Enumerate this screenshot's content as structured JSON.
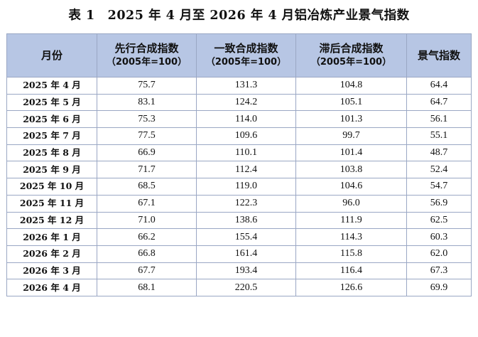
{
  "title": "表 1　2025 年 4 月至 2026 年 4 月铝冶炼产业景气指数",
  "headers": {
    "month": "月份",
    "leading": "先行合成指数",
    "leading_sub": "（2005年=100）",
    "coincident": "一致合成指数",
    "coincident_sub": "（2005年=100）",
    "lagging": "滞后合成指数",
    "lagging_sub": "（2005年=100）",
    "prosperity": "景气指数"
  },
  "rows": [
    {
      "month": "2025 年 4 月",
      "leading": "75.7",
      "coincident": "131.3",
      "lagging": "104.8",
      "prosperity": "64.4"
    },
    {
      "month": "2025 年 5 月",
      "leading": "83.1",
      "coincident": "124.2",
      "lagging": "105.1",
      "prosperity": "64.7"
    },
    {
      "month": "2025 年 6 月",
      "leading": "75.3",
      "coincident": "114.0",
      "lagging": "101.3",
      "prosperity": "56.1"
    },
    {
      "month": "2025 年 7 月",
      "leading": "77.5",
      "coincident": "109.6",
      "lagging": "99.7",
      "prosperity": "55.1"
    },
    {
      "month": "2025 年 8 月",
      "leading": "66.9",
      "coincident": "110.1",
      "lagging": "101.4",
      "prosperity": "48.7"
    },
    {
      "month": "2025 年 9 月",
      "leading": "71.7",
      "coincident": "112.4",
      "lagging": "103.8",
      "prosperity": "52.4"
    },
    {
      "month": "2025 年 10 月",
      "leading": "68.5",
      "coincident": "119.0",
      "lagging": "104.6",
      "prosperity": "54.7"
    },
    {
      "month": "2025 年 11 月",
      "leading": "67.1",
      "coincident": "122.3",
      "lagging": "96.0",
      "prosperity": "56.9"
    },
    {
      "month": "2025 年 12 月",
      "leading": "71.0",
      "coincident": "138.6",
      "lagging": "111.9",
      "prosperity": "62.5"
    },
    {
      "month": "2026 年 1 月",
      "leading": "66.2",
      "coincident": "155.4",
      "lagging": "114.3",
      "prosperity": "60.3"
    },
    {
      "month": "2026 年 2 月",
      "leading": "66.8",
      "coincident": "161.4",
      "lagging": "115.8",
      "prosperity": "62.0"
    },
    {
      "month": "2026 年 3 月",
      "leading": "67.7",
      "coincident": "193.4",
      "lagging": "116.4",
      "prosperity": "67.3"
    },
    {
      "month": "2026 年 4 月",
      "leading": "68.1",
      "coincident": "220.5",
      "lagging": "126.6",
      "prosperity": "69.9"
    }
  ],
  "colors": {
    "header_bg": "#b7c6e4",
    "border": "#9aa7c4"
  }
}
